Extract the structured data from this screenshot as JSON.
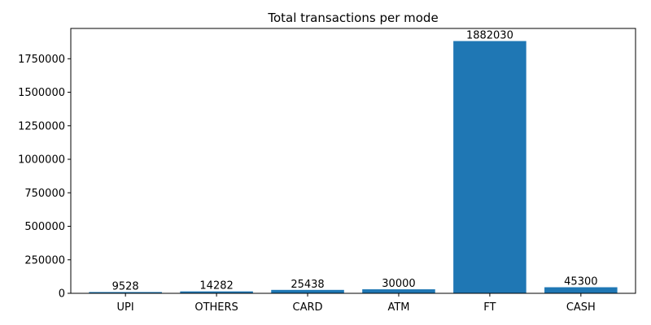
{
  "chart_data": {
    "type": "bar",
    "title": "Total transactions per mode",
    "xlabel": "",
    "ylabel": "",
    "categories": [
      "UPI",
      "OTHERS",
      "CARD",
      "ATM",
      "FT",
      "CASH"
    ],
    "values": [
      9528,
      14282,
      25438,
      30000,
      1882030,
      45300
    ],
    "data_labels": [
      "9528",
      "14282",
      "25438",
      "30000",
      "1882030",
      "45300"
    ],
    "ylim": [
      0,
      1976131
    ],
    "yticks": [
      0,
      250000,
      500000,
      750000,
      1000000,
      1250000,
      1500000,
      1750000
    ],
    "ytick_labels": [
      "0",
      "250000",
      "500000",
      "750000",
      "1000000",
      "1250000",
      "1500000",
      "1750000"
    ],
    "grid": false,
    "bar_color": "#1f77b4"
  }
}
